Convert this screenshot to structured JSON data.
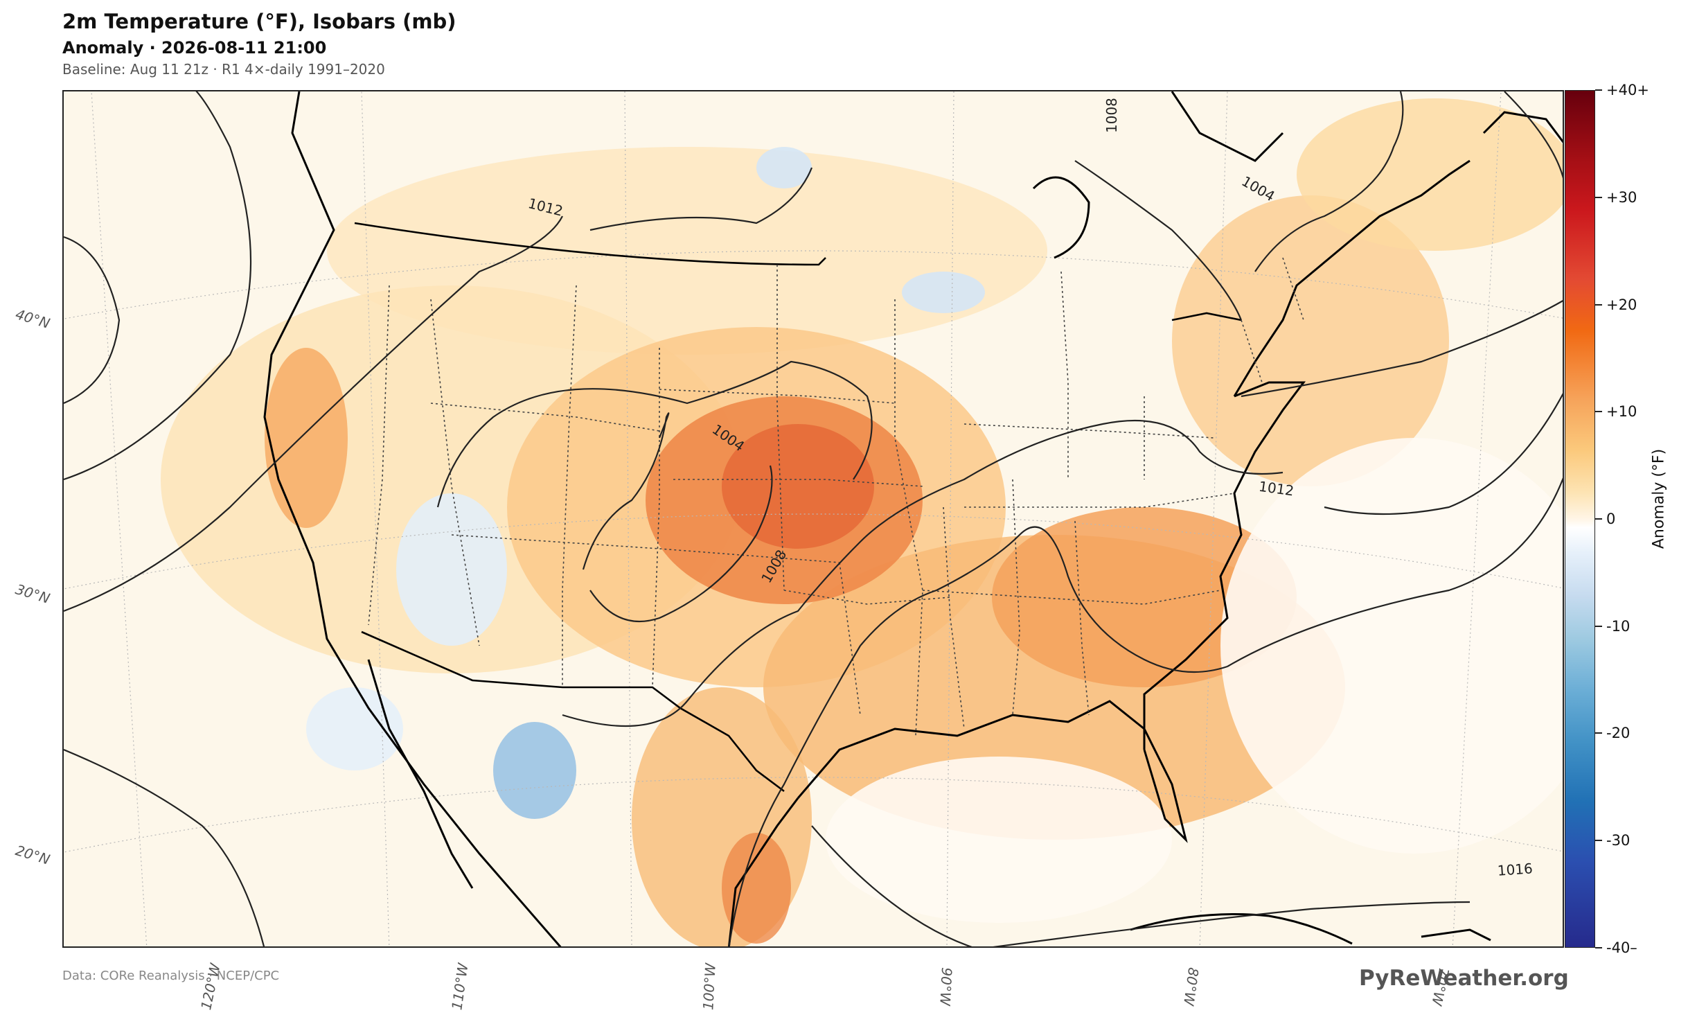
{
  "title": "2m Temperature (°F), Isobars (mb)",
  "subtitle": "Anomaly · 2026-08-11 21:00",
  "baseline": "Baseline: Aug 11 21z · R1 4×-daily 1991–2020",
  "source": "Data: CORe Reanalysis  ·  NCEP/CPC",
  "brand": "PyReWeather.org",
  "colorbar": {
    "title": "Anomaly  (°F)",
    "ticks": [
      "+40+",
      "+30",
      "+20",
      "+10",
      "0",
      "-10",
      "-20",
      "-30",
      "-40–"
    ]
  },
  "latitude_labels": [
    "40°N",
    "30°N",
    "20°N"
  ],
  "longitude_labels": [
    "120°W",
    "110°W",
    "100°W",
    "90°W",
    "80°W",
    "70°W"
  ],
  "isobar_labels": [
    "1012",
    "1008",
    "1004",
    "1004",
    "1008",
    "1012",
    "1016"
  ],
  "colors": {
    "warm_strong": "#e8703a",
    "warm_moderate": "#f6a960",
    "warm_light": "#fcd9a0",
    "neutral": "#fdf7ea",
    "cool_light": "#d5e6f5",
    "cool_moderate": "#8fbde4"
  }
}
